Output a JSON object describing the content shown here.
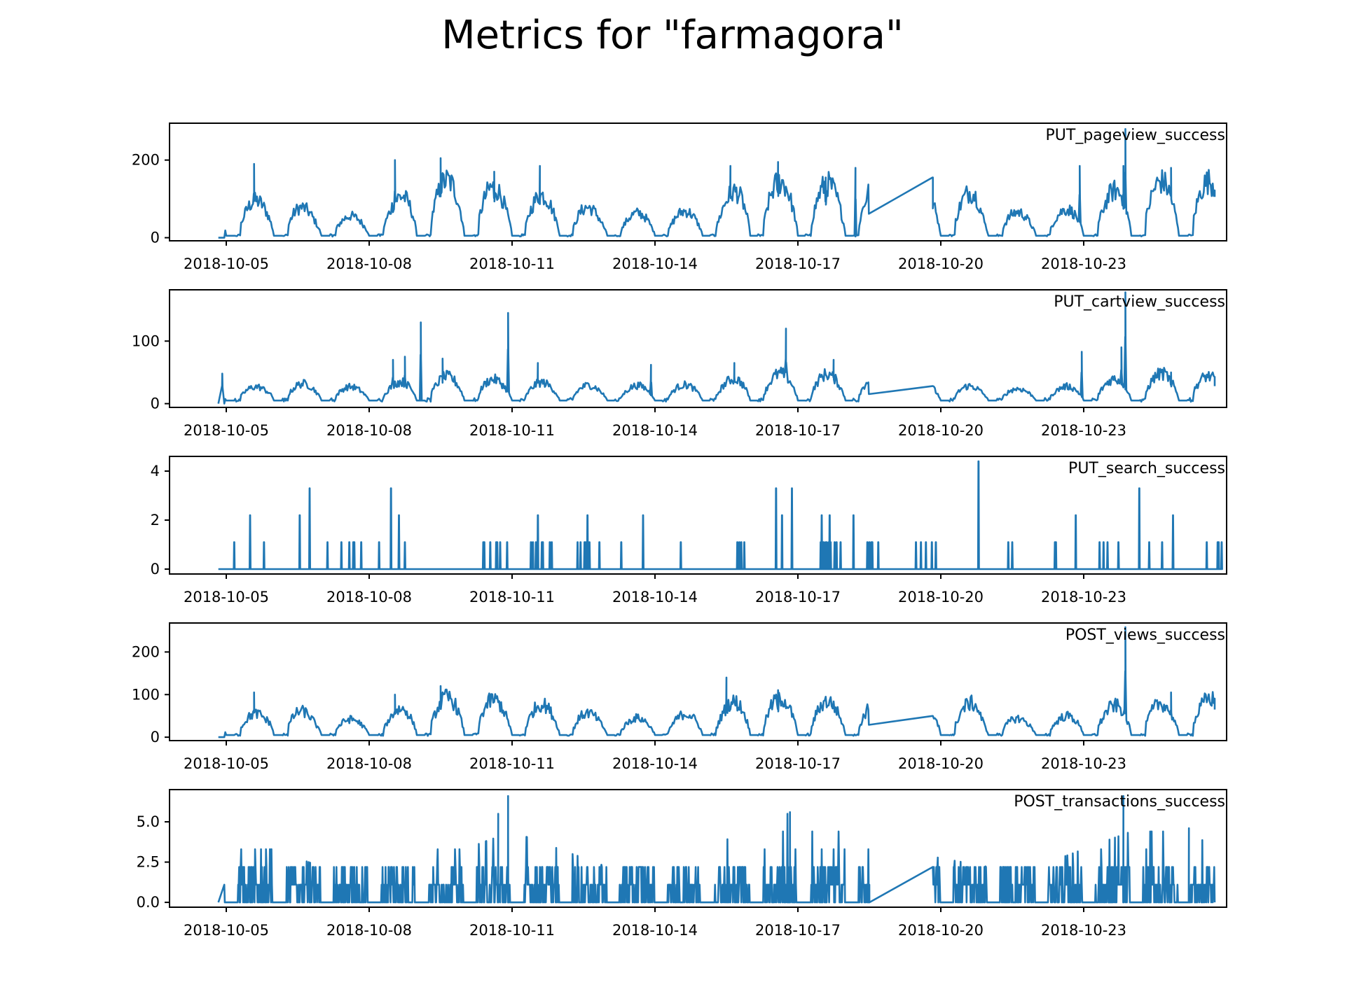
{
  "title": "Metrics for \"farmagora\"",
  "colors": {
    "line": "#1f77b4",
    "axis": "#000000",
    "background": "#ffffff"
  },
  "x_tick_labels": [
    "2018-10-05",
    "2018-10-08",
    "2018-10-11",
    "2018-10-14",
    "2018-10-17",
    "2018-10-20",
    "2018-10-23"
  ],
  "chart_data": [
    {
      "type": "line",
      "title": "PUT_pageview_success",
      "x_range": [
        "2018-10-03",
        "2018-10-26"
      ],
      "ylim": [
        -8,
        295
      ],
      "yticks": [
        0,
        200
      ],
      "ytick_labels": [
        "0",
        "200"
      ],
      "gap": [
        "2018-10-18T12:00",
        "2018-10-19T20:00"
      ],
      "series": [
        {
          "style": "daily",
          "base": 60,
          "day_amplitudes": [
            [
              4.83,
              90
            ],
            [
              5.0,
              100
            ],
            [
              6.0,
              55
            ],
            [
              7.0,
              48
            ],
            [
              8.0,
              130
            ],
            [
              9.0,
              150
            ],
            [
              10.0,
              110
            ],
            [
              11.0,
              100
            ],
            [
              12.0,
              55
            ],
            [
              13.0,
              60
            ],
            [
              14.0,
              65
            ],
            [
              15.0,
              140
            ],
            [
              16.0,
              140
            ],
            [
              17.0,
              130
            ],
            [
              18.0,
              130
            ],
            [
              19.75,
              110
            ],
            [
              20.0,
              70
            ],
            [
              21.0,
              55
            ],
            [
              22.0,
              75
            ],
            [
              23.0,
              140
            ],
            [
              24.0,
              140
            ],
            [
              25.0,
              140
            ]
          ],
          "spikes": [
            [
              "2018-10-05T14:00",
              190
            ],
            [
              "2018-10-08T13:00",
              200
            ],
            [
              "2018-10-09T12:00",
              205
            ],
            [
              "2018-10-10T15:00",
              170
            ],
            [
              "2018-10-11T14:00",
              185
            ],
            [
              "2018-10-15T14:00",
              185
            ],
            [
              "2018-10-16T14:00",
              195
            ],
            [
              "2018-10-17T14:00",
              155
            ],
            [
              "2018-10-18T05:00",
              180
            ],
            [
              "2018-10-19T20:00",
              155
            ],
            [
              "2018-10-22T22:00",
              185
            ],
            [
              "2018-10-23T20:00",
              185
            ],
            [
              "2018-10-23T21:00",
              280
            ],
            [
              "2018-10-24T20:00",
              180
            ]
          ],
          "end_value": 105
        }
      ]
    },
    {
      "type": "line",
      "title": "PUT_cartview_success",
      "x_range": [
        "2018-10-03",
        "2018-10-26"
      ],
      "ylim": [
        -6,
        182
      ],
      "yticks": [
        0,
        100
      ],
      "ytick_labels": [
        "0",
        "100"
      ],
      "gap": [
        "2018-10-18T12:00",
        "2018-10-19T20:00"
      ],
      "series": [
        {
          "style": "daily",
          "base": 10,
          "day_amplitudes": [
            [
              4.83,
              22
            ],
            [
              5.0,
              30
            ],
            [
              6.0,
              25
            ],
            [
              7.0,
              20
            ],
            [
              8.0,
              35
            ],
            [
              9.0,
              40
            ],
            [
              10.0,
              30
            ],
            [
              11.0,
              28
            ],
            [
              12.0,
              22
            ],
            [
              13.0,
              25
            ],
            [
              14.0,
              25
            ],
            [
              15.0,
              40
            ],
            [
              16.0,
              45
            ],
            [
              17.0,
              40
            ],
            [
              18.0,
              35
            ],
            [
              19.75,
              22
            ],
            [
              20.0,
              20
            ],
            [
              21.0,
              18
            ],
            [
              22.0,
              25
            ],
            [
              23.0,
              40
            ],
            [
              24.0,
              45
            ],
            [
              25.0,
              35
            ]
          ],
          "spikes": [
            [
              "2018-10-04T22:00",
              48
            ],
            [
              "2018-10-08T12:00",
              70
            ],
            [
              "2018-10-08T18:00",
              75
            ],
            [
              "2018-10-09T02:00",
              130
            ],
            [
              "2018-10-09T13:00",
              72
            ],
            [
              "2018-10-10T22:00",
              145
            ],
            [
              "2018-10-11T13:00",
              65
            ],
            [
              "2018-10-13T22:00",
              62
            ],
            [
              "2018-10-15T16:00",
              65
            ],
            [
              "2018-10-16T18:00",
              120
            ],
            [
              "2018-10-17T18:00",
              70
            ],
            [
              "2018-10-22T23:00",
              83
            ],
            [
              "2018-10-23T19:00",
              90
            ],
            [
              "2018-10-23T21:00",
              178
            ],
            [
              "2018-10-24T20:00",
              50
            ]
          ],
          "end_value": 28
        }
      ]
    },
    {
      "type": "line",
      "title": "PUT_search_success",
      "x_range": [
        "2018-10-03",
        "2018-10-26"
      ],
      "ylim": [
        -0.2,
        4.6
      ],
      "yticks": [
        0,
        2,
        4
      ],
      "ytick_labels": [
        "0",
        "2",
        "4"
      ],
      "series": [
        {
          "style": "sparse",
          "events": [
            [
              "2018-10-05T04:00",
              1.1
            ],
            [
              "2018-10-05T12:00",
              2.2
            ],
            [
              "2018-10-05T19:00",
              1.1
            ],
            [
              "2018-10-06T13:00",
              2.2
            ],
            [
              "2018-10-06T18:00",
              3.3
            ],
            [
              "2018-10-07T03:00",
              1.1
            ],
            [
              "2018-10-07T14:00",
              1.1
            ],
            [
              "2018-10-08T05:00",
              1.1
            ],
            [
              "2018-10-08T11:00",
              3.3
            ],
            [
              "2018-10-08T15:00",
              2.2
            ],
            [
              "2018-10-08T18:00",
              1.1
            ],
            [
              "2018-10-11T13:00",
              2.2
            ],
            [
              "2018-10-11T19:00",
              1.1
            ],
            [
              "2018-10-12T14:00",
              2.2
            ],
            [
              "2018-10-13T07:00",
              1.1
            ],
            [
              "2018-10-13T18:00",
              2.2
            ],
            [
              "2018-10-14T13:00",
              1.1
            ],
            [
              "2018-10-16T13:00",
              3.3
            ],
            [
              "2018-10-16T16:00",
              2.2
            ],
            [
              "2018-10-16T21:00",
              3.3
            ],
            [
              "2018-10-17T12:00",
              2.2
            ],
            [
              "2018-10-17T16:00",
              2.2
            ],
            [
              "2018-10-18T04:00",
              2.2
            ],
            [
              "2018-10-20T19:00",
              4.4
            ],
            [
              "2018-10-22T20:00",
              2.2
            ],
            [
              "2018-10-24T04:00",
              3.3
            ],
            [
              "2018-10-24T21:00",
              2.2
            ]
          ],
          "cluster_days": [
            [
              6.0,
              0.45
            ],
            [
              9.0,
              0.5
            ],
            [
              10.0,
              0.6
            ],
            [
              11.0,
              0.5
            ],
            [
              14.0,
              0.45
            ],
            [
              16.0,
              0.6
            ],
            [
              17.0,
              0.7
            ],
            [
              18.0,
              0.5
            ],
            [
              20.0,
              0.3
            ],
            [
              21.0,
              0.35
            ],
            [
              22.0,
              0.55
            ],
            [
              23.0,
              0.6
            ],
            [
              24.0,
              0.5
            ]
          ],
          "cluster_value": 1.1
        }
      ]
    },
    {
      "type": "line",
      "title": "POST_views_success",
      "x_range": [
        "2018-10-03",
        "2018-10-26"
      ],
      "ylim": [
        -8,
        268
      ],
      "yticks": [
        0,
        100,
        200
      ],
      "ytick_labels": [
        "0",
        "100",
        "200"
      ],
      "gap": [
        "2018-10-18T12:00",
        "2018-10-19T20:00"
      ],
      "series": [
        {
          "style": "daily",
          "base": 35,
          "day_amplitudes": [
            [
              4.83,
              50
            ],
            [
              5.0,
              80
            ],
            [
              6.0,
              40
            ],
            [
              7.0,
              35
            ],
            [
              8.0,
              75
            ],
            [
              9.0,
              95
            ],
            [
              10.0,
              75
            ],
            [
              11.0,
              70
            ],
            [
              12.0,
              40
            ],
            [
              13.0,
              40
            ],
            [
              14.0,
              55
            ],
            [
              15.0,
              90
            ],
            [
              16.0,
              85
            ],
            [
              17.0,
              75
            ],
            [
              18.0,
              70
            ],
            [
              19.75,
              75
            ],
            [
              20.0,
              45
            ],
            [
              21.0,
              35
            ],
            [
              22.0,
              50
            ],
            [
              23.0,
              80
            ],
            [
              24.0,
              70
            ],
            [
              25.0,
              95
            ]
          ],
          "spikes": [
            [
              "2018-10-05T14:00",
              105
            ],
            [
              "2018-10-08T13:00",
              100
            ],
            [
              "2018-10-09T12:00",
              120
            ],
            [
              "2018-10-15T12:00",
              140
            ],
            [
              "2018-10-16T14:00",
              110
            ],
            [
              "2018-10-23T21:00",
              258
            ],
            [
              "2018-10-24T20:00",
              105
            ]
          ],
          "end_value": 65
        }
      ]
    },
    {
      "type": "line",
      "title": "POST_transactions_success",
      "x_range": [
        "2018-10-03",
        "2018-10-26"
      ],
      "ylim": [
        -0.3,
        7.0
      ],
      "yticks": [
        0,
        2.5,
        5.0
      ],
      "ytick_labels": [
        "0.0",
        "2.5",
        "5.0"
      ],
      "gap": [
        "2018-10-18T12:00",
        "2018-10-19T20:00"
      ],
      "series": [
        {
          "style": "dense",
          "levels": [
            1.1,
            2.2,
            3.3,
            4.4,
            5.5
          ],
          "day_peaks": [
            [
              5.0,
              3.3
            ],
            [
              6.0,
              2.2
            ],
            [
              7.0,
              2.2
            ],
            [
              8.0,
              3.3
            ],
            [
              9.0,
              3.3
            ],
            [
              10.0,
              4.4
            ],
            [
              11.0,
              3.3
            ],
            [
              12.0,
              2.2
            ],
            [
              13.0,
              2.2
            ],
            [
              14.0,
              2.2
            ],
            [
              15.0,
              5.5
            ],
            [
              16.0,
              5.5
            ],
            [
              17.0,
              4.4
            ],
            [
              18.0,
              3.3
            ],
            [
              20.0,
              2.2
            ],
            [
              21.0,
              2.2
            ],
            [
              22.0,
              3.3
            ],
            [
              23.0,
              4.4
            ],
            [
              24.0,
              4.4
            ],
            [
              25.0,
              3.3
            ]
          ],
          "spikes": [
            [
              "2018-10-10T17:00",
              5.5
            ],
            [
              "2018-10-10T22:00",
              6.6
            ],
            [
              "2018-10-16T20:00",
              5.6
            ],
            [
              "2018-10-23T20:00",
              6.6
            ],
            [
              "2018-10-25T05:00",
              4.6
            ]
          ],
          "gap_endpoints": [
            0.0,
            2.2
          ]
        }
      ]
    }
  ]
}
